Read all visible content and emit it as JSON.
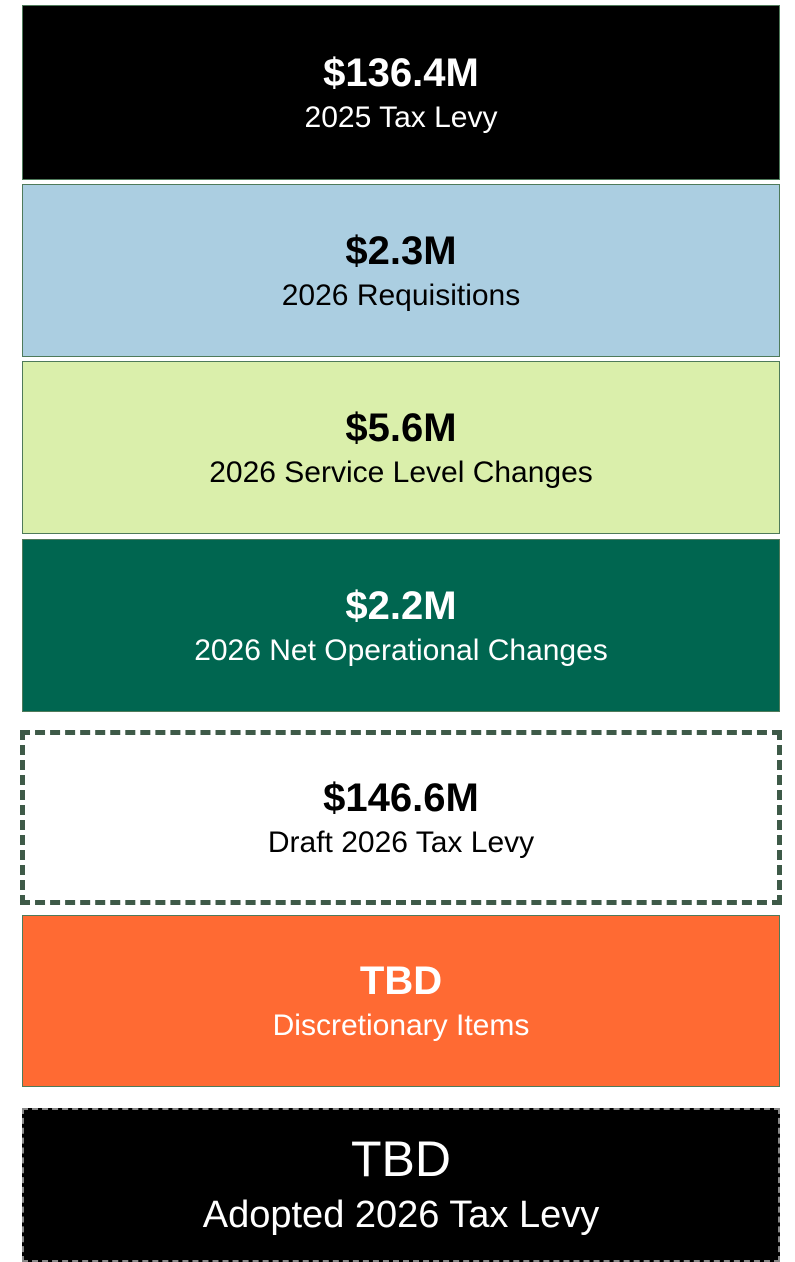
{
  "boxes": [
    {
      "amount": "$136.4M",
      "label": "2025 Tax Levy"
    },
    {
      "amount": "$2.3M",
      "label": "2026 Requisitions"
    },
    {
      "amount": "$5.6M",
      "label": "2026 Service Level Changes"
    },
    {
      "amount": "$2.2M",
      "label": "2026 Net Operational Changes"
    },
    {
      "amount": "$146.6M",
      "label": "Draft 2026 Tax Levy"
    },
    {
      "amount": "TBD",
      "label": "Discretionary Items"
    },
    {
      "amount": "TBD",
      "label": "Adopted 2026 Tax Levy"
    }
  ]
}
